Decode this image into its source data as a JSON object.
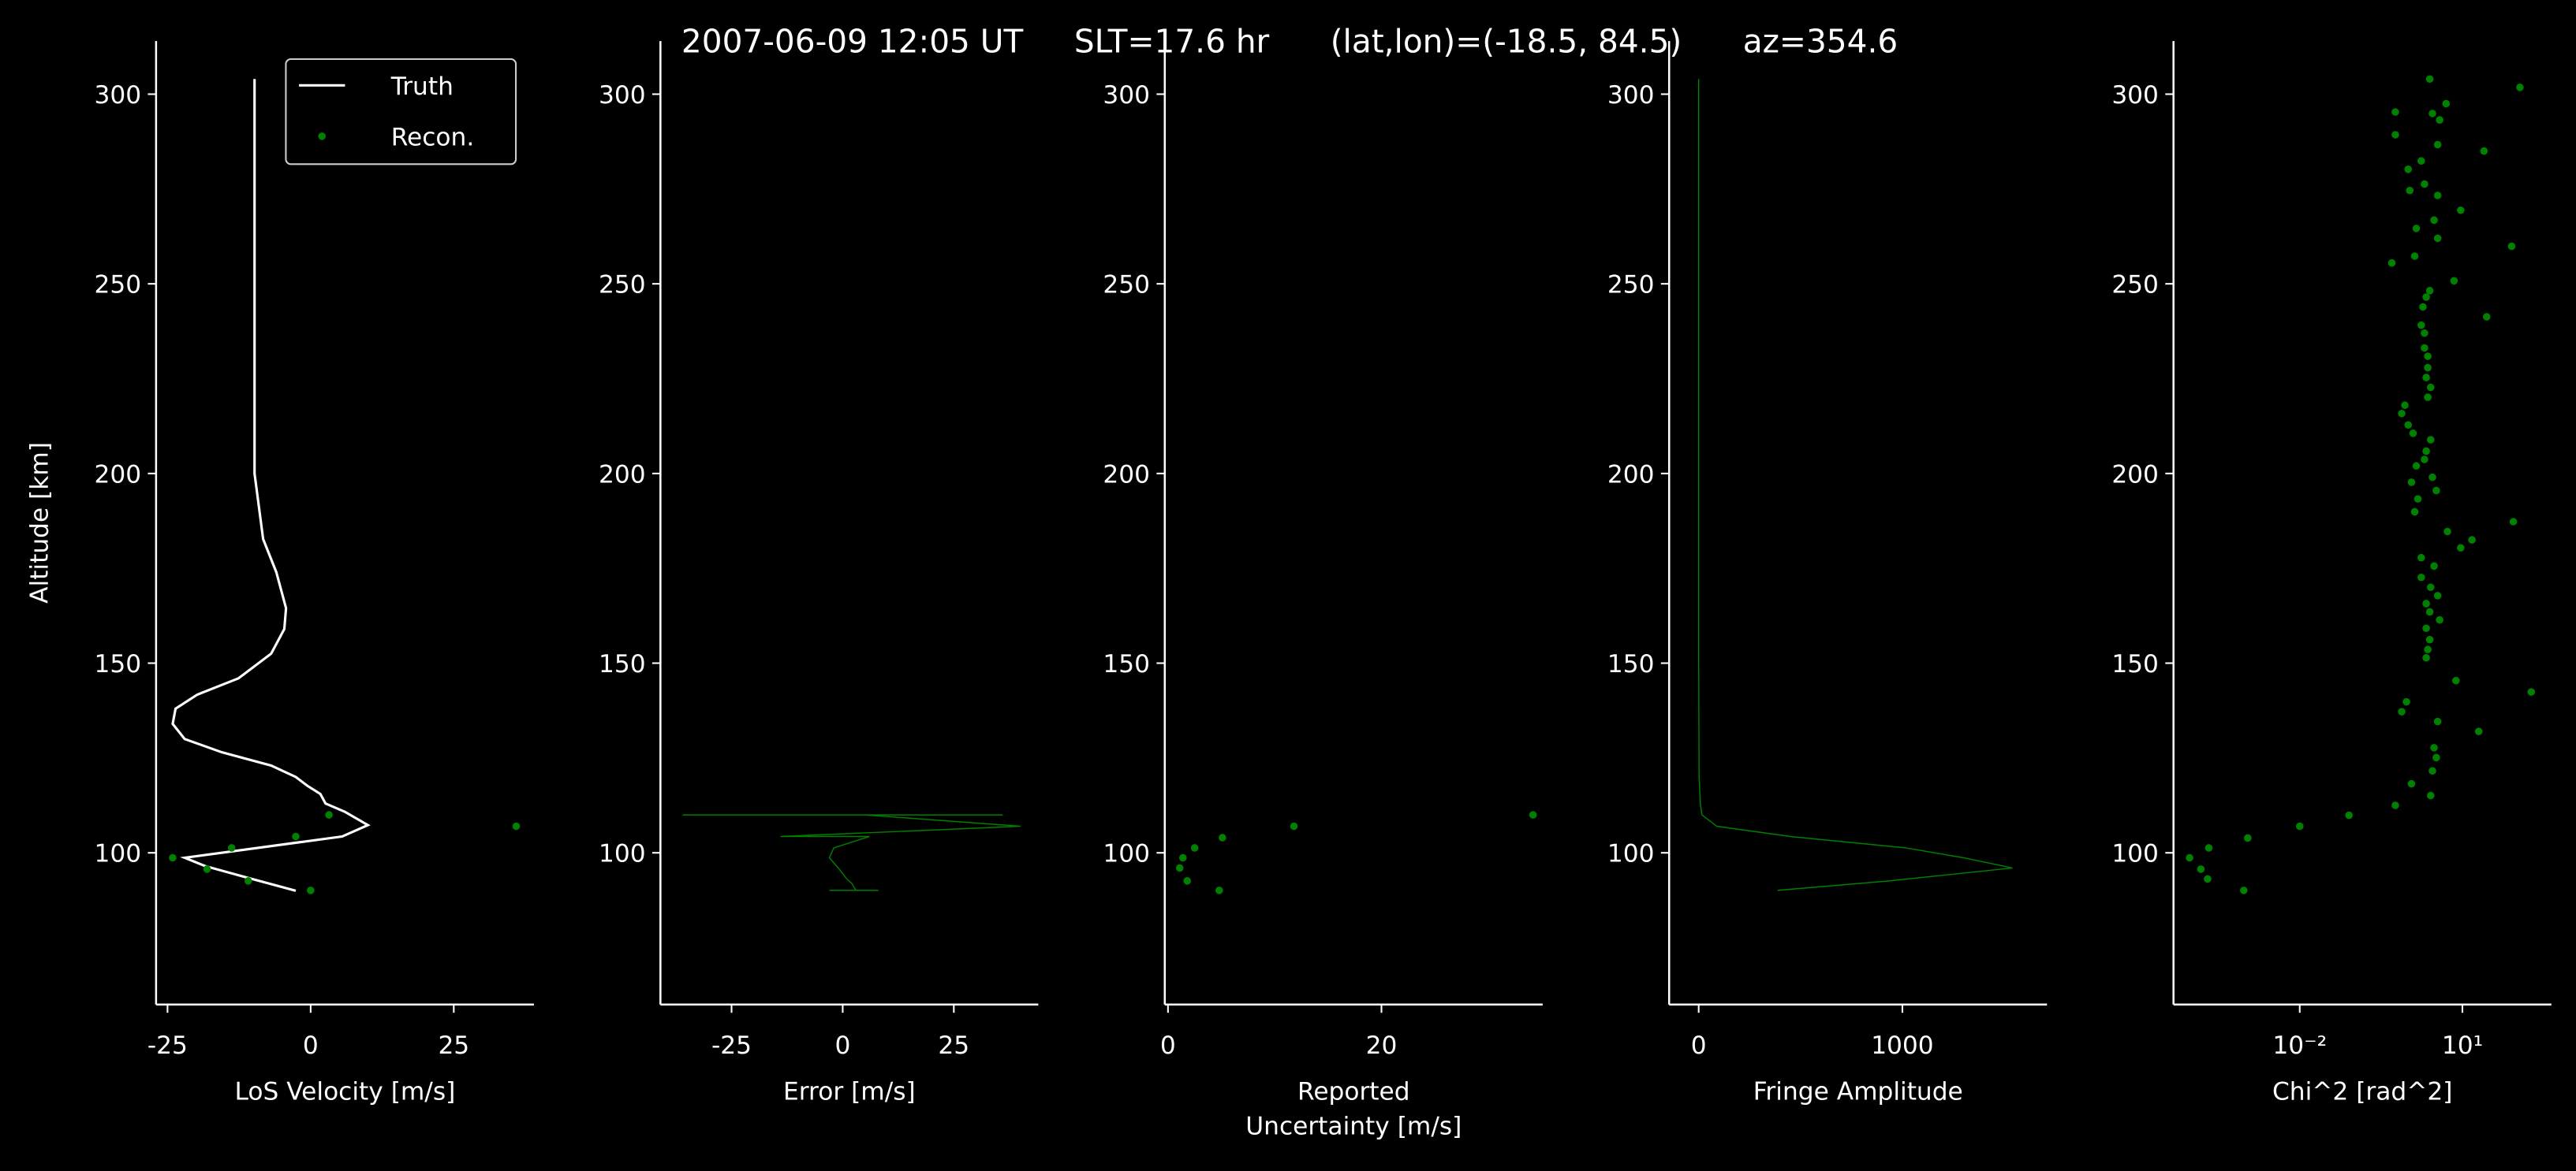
{
  "title": "2007-06-09 12:05 UT     SLT=17.6 hr      (lat,lon)=(-18.5, 84.5)      az=354.6",
  "chart_data": [
    {
      "type": "line",
      "x_label": [
        "LoS Velocity [m/s]"
      ],
      "y_label": "Altitude [km]",
      "xlim": [
        -27,
        39
      ],
      "ylim": [
        60,
        314
      ],
      "xticks": [
        -25,
        0,
        25
      ],
      "yticks": [
        100,
        150,
        200,
        250,
        300
      ],
      "legend": "upper right",
      "series": [
        {
          "name": "Truth",
          "type": "line",
          "color": "#ffffff",
          "x": [
            -9.8,
            -9.8,
            -8.3,
            -6,
            -4.3,
            -4.6,
            -6.9,
            -12.6,
            -19.8,
            -23.6,
            -24.1,
            -22,
            -15.5,
            -6.9,
            -2.6,
            -0.6,
            1.7,
            2.6,
            6,
            10,
            5.5,
            -22,
            -18.4,
            -11.2,
            -2.6
          ],
          "y": [
            304,
            200,
            182.7,
            174,
            164.5,
            159,
            152.5,
            146,
            141.7,
            138,
            134,
            130,
            126.5,
            123,
            120,
            117.7,
            115.5,
            113,
            110.8,
            107.3,
            104.3,
            98.7,
            96.5,
            93.5,
            90
          ]
        },
        {
          "name": "Recon.",
          "type": "scatter",
          "color": "#008000",
          "x": [
            35.9,
            3.2,
            -2.6,
            -13.8,
            -24.1,
            -18.1,
            -10.9,
            0
          ],
          "y": [
            107,
            110,
            104.3,
            101.3,
            98.7,
            95.7,
            92.6,
            90.1
          ]
        }
      ]
    },
    {
      "type": "line",
      "x_label": [
        "Error [m/s]"
      ],
      "xlim": [
        -41,
        44
      ],
      "ylim": [
        60,
        314
      ],
      "xticks": [
        -25,
        0,
        25
      ],
      "yticks": [
        100,
        150,
        200,
        250,
        300
      ],
      "series": [
        {
          "type": "line",
          "color": "#008000",
          "x": [
            -36,
            36,
            5,
            40,
            -14,
            6,
            -2,
            -3,
            -1,
            1,
            2,
            3,
            -3,
            8
          ],
          "y": [
            110,
            110,
            110,
            107,
            104.3,
            104.3,
            101.3,
            98.7,
            96,
            93,
            92,
            90.1,
            90.1,
            90.1
          ]
        }
      ]
    },
    {
      "type": "scatter",
      "x_label": [
        "Reported",
        "Uncertainty [m/s]"
      ],
      "xlim": [
        -0.3,
        35.1
      ],
      "ylim": [
        60,
        314
      ],
      "xticks": [
        0,
        20
      ],
      "yticks": [
        100,
        150,
        200,
        250,
        300
      ],
      "series": [
        {
          "type": "scatter",
          "color": "#008000",
          "x": [
            34.2,
            11.8,
            5.1,
            2.5,
            1.4,
            1.1,
            1.8,
            4.8
          ],
          "y": [
            110,
            107,
            104,
            101.3,
            98.7,
            96,
            92.6,
            90.1
          ]
        }
      ]
    },
    {
      "type": "line",
      "x_label": [
        "Fringe Amplitude"
      ],
      "xlim": [
        -145,
        1710
      ],
      "ylim": [
        60,
        314
      ],
      "xticks": [
        0,
        1000
      ],
      "yticks": [
        100,
        150,
        200,
        250,
        300
      ],
      "series": [
        {
          "type": "line",
          "color": "#008000",
          "x": [
            0,
            0,
            0,
            0,
            2,
            8,
            16,
            89,
            450,
            1016,
            1300,
            1540,
            935,
            387
          ],
          "y": [
            304,
            250,
            200,
            150,
            120,
            113,
            110,
            107,
            104.3,
            101.3,
            98.7,
            96,
            92.6,
            90.1
          ]
        }
      ]
    },
    {
      "type": "scatter",
      "x_label": [
        "Chi^2 [rad^2]"
      ],
      "xscale": "log",
      "xlim": [
        4.7e-05,
        437
      ],
      "ylim": [
        60,
        314
      ],
      "xticks": [
        {
          "value": 0.01,
          "label": "10⁻²"
        },
        {
          "value": 10,
          "label": "10¹"
        }
      ],
      "yticks": [
        100,
        150,
        200,
        250,
        300
      ],
      "series": [
        {
          "type": "scatter",
          "color": "#008000",
          "x": [
            2.5,
            115,
            5.0,
            2.8,
            0.58,
            3.8,
            0.58,
            3.5,
            25,
            1.74,
            1.0,
            2.0,
            1.07,
            3.5,
            9.3,
            3.0,
            1.41,
            3.5,
            81,
            1.32,
            0.5,
            7.0,
            2.5,
            2.15,
            1.87,
            28,
            1.74,
            2.0,
            2.0,
            2.3,
            2.3,
            2.15,
            2.6,
            2.3,
            0.87,
            0.76,
            1.0,
            1.23,
            2.6,
            2.15,
            2.0,
            1.41,
            2.8,
            1.15,
            3.3,
            1.51,
            1.32,
            87,
            5.3,
            15,
            9.3,
            1.74,
            3.0,
            1.74,
            2.6,
            3.5,
            2.15,
            2.5,
            3.8,
            2.15,
            2.5,
            2.3,
            2.15,
            7.6,
            186,
            0.93,
            0.76,
            3.5,
            20,
            3.0,
            3.3,
            2.8,
            1.15,
            2.6,
            0.58,
            0.081,
            0.01,
            0.0011,
            0.00021,
            9.3e-05,
            0.00015,
            0.0002,
            0.00093
          ],
          "y": [
            304.0,
            301.8,
            297.5,
            294.9,
            295.3,
            293.2,
            289.3,
            286.7,
            285.0,
            282.4,
            280.2,
            276.3,
            274.6,
            273.3,
            269.4,
            266.8,
            264.6,
            262.0,
            259.9,
            257.3,
            255.5,
            250.8,
            248.2,
            246.5,
            243.9,
            241.3,
            239.1,
            237.0,
            233.1,
            230.9,
            227.9,
            225.3,
            222.7,
            220.1,
            218.0,
            215.8,
            212.8,
            210.6,
            208.9,
            205.9,
            203.7,
            202.0,
            199.0,
            197.7,
            195.5,
            193.3,
            189.9,
            187.3,
            184.7,
            182.5,
            180.4,
            177.8,
            175.6,
            172.6,
            170.0,
            167.8,
            165.7,
            163.5,
            161.4,
            159.2,
            156.2,
            153.6,
            151.4,
            145.4,
            142.4,
            139.8,
            137.2,
            134.6,
            132.0,
            127.7,
            125.1,
            121.6,
            118.2,
            115.1,
            112.5,
            109.9,
            107.0,
            103.9,
            101.3,
            98.7,
            95.7,
            93.1,
            90.1
          ]
        }
      ]
    }
  ]
}
